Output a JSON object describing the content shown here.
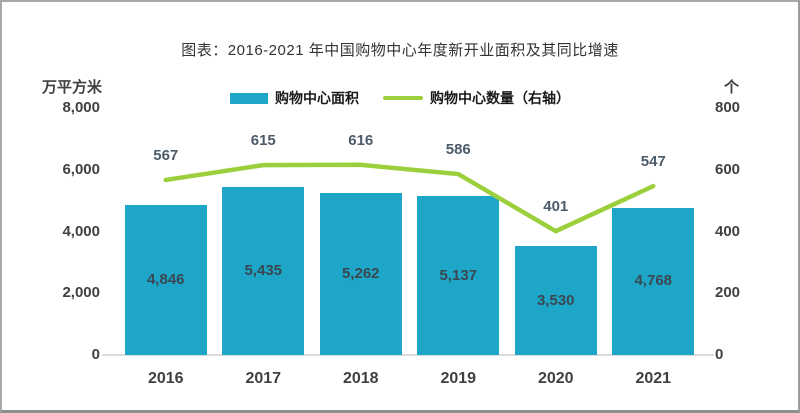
{
  "chart_data": {
    "type": "bar",
    "combo": "bar+line",
    "title": "图表：2016-2021 年中国购物中心年度新开业面积及其同比增速",
    "categories": [
      "2016",
      "2017",
      "2018",
      "2019",
      "2020",
      "2021"
    ],
    "series": [
      {
        "name": "购物中心面积",
        "chart_type": "bar",
        "axis": "left",
        "color": "#1ea6c9",
        "values": [
          4846,
          5435,
          5262,
          5137,
          3530,
          4768
        ],
        "labels": [
          "4,846",
          "5,435",
          "5,262",
          "5,137",
          "3,530",
          "4,768"
        ]
      },
      {
        "name": "购物中心数量（右轴）",
        "chart_type": "line",
        "axis": "right",
        "color": "#9ccf3c",
        "values": [
          567,
          615,
          616,
          586,
          401,
          547
        ],
        "labels": [
          "567",
          "615",
          "616",
          "586",
          "401",
          "547"
        ]
      }
    ],
    "left_axis": {
      "unit": "万平方米",
      "min": 0,
      "max": 8000,
      "tick_labels": [
        "8,000",
        "6,000",
        "4,000",
        "2,000",
        "0"
      ],
      "tick_values": [
        8000,
        6000,
        4000,
        2000,
        0
      ]
    },
    "right_axis": {
      "unit": "个",
      "min": 0,
      "max": 800,
      "tick_labels": [
        "800",
        "600",
        "400",
        "200",
        "0"
      ],
      "tick_values": [
        800,
        600,
        400,
        200,
        0
      ]
    },
    "legend_position": "top",
    "grid": false,
    "background": "#ffffff"
  }
}
